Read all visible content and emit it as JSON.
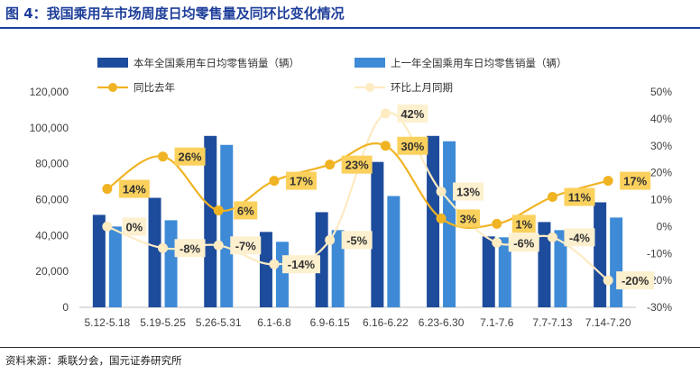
{
  "title": "图 4：我国乘用车市场周度日均零售量及同环比变化情况",
  "source": "资料来源：乘联分会，国元证券研究所",
  "colors": {
    "title": "#1f3f9a",
    "bar_current": "#1e4c9c",
    "bar_last_year": "#3e8ad6",
    "line_yoy": "#f0b323",
    "line_yoy_label_bg": "#fbd15d",
    "line_mom": "#fdebc2",
    "line_mom_label_bg": "#fdf0cf"
  },
  "chart_data": {
    "type": "bar",
    "categories": [
      "5.12-5.18",
      "5.19-5.25",
      "5.26-5.31",
      "6.1-6.8",
      "6.9-6.15",
      "6.16-6.22",
      "6.23-6.30",
      "7.1-7.6",
      "7.7-7.13",
      "7.14-7.20"
    ],
    "left_axis": {
      "ylim": [
        0,
        120000
      ],
      "ticks": [
        "0",
        "20,000",
        "40,000",
        "60,000",
        "80,000",
        "100,000",
        "120,000"
      ],
      "tick_values": [
        0,
        20000,
        40000,
        60000,
        80000,
        100000,
        120000
      ]
    },
    "right_axis": {
      "ylim": [
        -30,
        50
      ],
      "ticks": [
        "-30%",
        "-20%",
        "-10%",
        "0%",
        "10%",
        "20%",
        "30%",
        "40%",
        "50%"
      ],
      "tick_values": [
        -30,
        -20,
        -10,
        0,
        10,
        20,
        30,
        40,
        50
      ]
    },
    "series": [
      {
        "name": "本年全国乘用车日均零售销量（辆）",
        "type": "bar",
        "axis": "left",
        "values": [
          51500,
          61000,
          95500,
          42000,
          53000,
          81000,
          95500,
          39500,
          47500,
          58500
        ]
      },
      {
        "name": "上一年全国乘用车日均零售销量（辆）",
        "type": "bar",
        "axis": "left",
        "values": [
          45000,
          48500,
          90500,
          36500,
          43000,
          62000,
          92500,
          39000,
          43000,
          50000
        ]
      },
      {
        "name": "同比去年",
        "type": "line",
        "axis": "right",
        "values": [
          14,
          26,
          6,
          17,
          23,
          30,
          3,
          1,
          11,
          17
        ],
        "labels": [
          "14%",
          "26%",
          "6%",
          "17%",
          "23%",
          "30%",
          "3%",
          "1%",
          "11%",
          "17%"
        ]
      },
      {
        "name": "环比上月同期",
        "type": "line",
        "axis": "right",
        "values": [
          0,
          -8,
          -7,
          -14,
          -5,
          42,
          13,
          -6,
          -4,
          -20
        ],
        "labels": [
          "0%",
          "-8%",
          "-7%",
          "-14%",
          "-5%",
          "42%",
          "13%",
          "-6%",
          "-4%",
          "-20%"
        ]
      }
    ],
    "legend_position": "top",
    "grid": false
  }
}
